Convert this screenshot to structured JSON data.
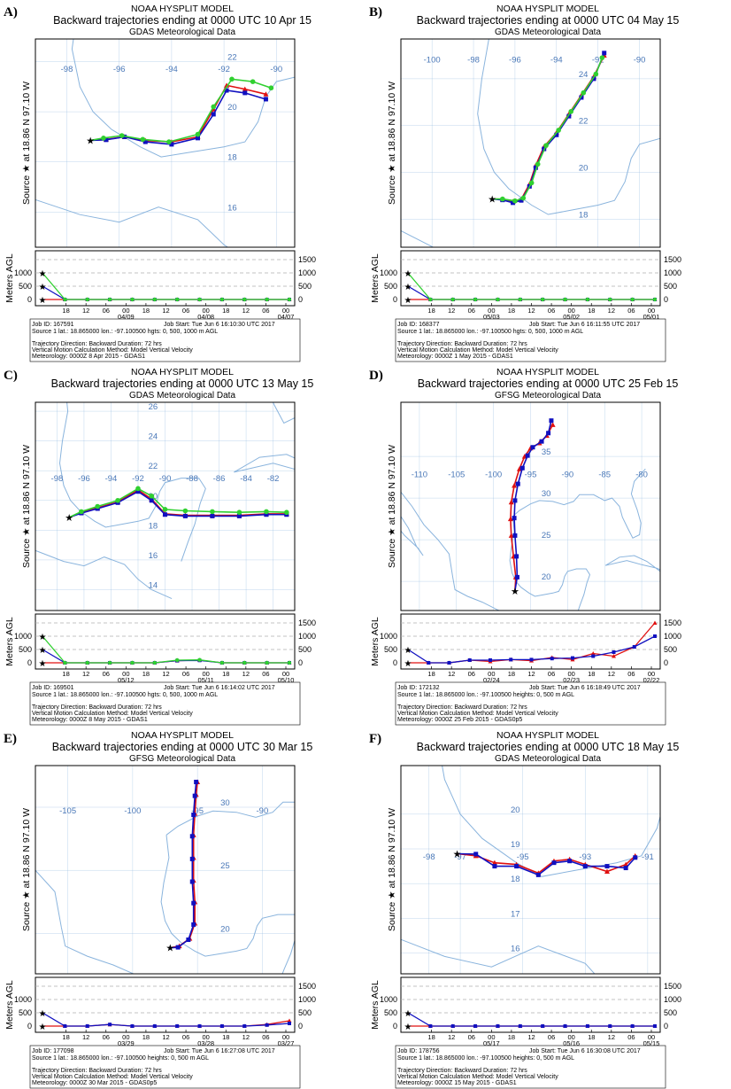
{
  "colors": {
    "coast": "#8ab4dd",
    "grid": "#8ab4dd",
    "red": "#e01010",
    "blue": "#1010c0",
    "green": "#30d030",
    "box": "#000000",
    "dash": "#b0b0b0"
  },
  "common": {
    "model_title": "NOAA HYSPLIT MODEL",
    "source_label": "Source ★ at",
    "lat_label": "18.86 N",
    "lon_label": "97.10 W",
    "vert_label": "Meters AGL",
    "source_line_3": "Source 1 lat.: 18.865000  lon.: -97.100500  hgts: 0, 500, 1000 m AGL",
    "source_line_2": "Source 1 lat.: 18.865000  lon.: -97.100500  heights: 0, 500 m AGL",
    "traj_line": "Trajectory Direction: Backward      Duration: 72 hrs",
    "vmotion_line": "Vertical Motion Calculation Method:      Model Vertical Velocity",
    "vert_ticks": [
      "1500",
      "1000",
      "500",
      "0"
    ]
  },
  "chart_data": [
    {
      "panel_label": "A)",
      "type": "line",
      "title": "Backward trajectories ending at 0000 UTC 10 Apr 15",
      "subtitle": "GDAS Meteorological Data",
      "lon_ticks": [
        "-98",
        "-96",
        "-94",
        "-92",
        "-90"
      ],
      "lat_ticks": [
        "22",
        "20",
        "18",
        "16"
      ],
      "series": [
        {
          "color": "red",
          "height_m": 0,
          "lon": [
            -97.1,
            -96.5,
            -95.8,
            -95.0,
            -94.0,
            -93.0,
            -92.4,
            -91.9,
            -91.2,
            -90.4
          ],
          "lat": [
            18.86,
            18.9,
            19.0,
            18.85,
            18.8,
            19.0,
            20.1,
            21.05,
            20.9,
            20.7
          ]
        },
        {
          "color": "blue",
          "height_m": 500,
          "lon": [
            -97.1,
            -96.5,
            -95.8,
            -95.0,
            -94.0,
            -93.0,
            -92.4,
            -91.9,
            -91.2,
            -90.4
          ],
          "lat": [
            18.86,
            18.88,
            19.0,
            18.8,
            18.7,
            18.95,
            19.9,
            20.85,
            20.75,
            20.5
          ]
        },
        {
          "color": "green",
          "height_m": 1000,
          "lon": [
            -97.1,
            -96.6,
            -95.9,
            -95.1,
            -94.1,
            -93.0,
            -92.4,
            -91.7,
            -90.9,
            -90.2
          ],
          "lat": [
            18.86,
            18.95,
            19.05,
            18.9,
            18.8,
            19.1,
            20.2,
            21.3,
            21.2,
            20.95
          ]
        }
      ],
      "time_ticks": [
        "18",
        "12",
        "06",
        "00",
        "18",
        "12",
        "06",
        "00",
        "18",
        "12",
        "06",
        "00"
      ],
      "date_ticks": [
        "04/09",
        "04/08",
        "04/07"
      ],
      "vertical": [
        {
          "color": "red",
          "h": [
            0,
            0,
            0,
            0,
            0,
            0,
            0,
            0,
            0,
            0,
            0,
            0
          ]
        },
        {
          "color": "blue",
          "h": [
            500,
            0,
            0,
            0,
            0,
            0,
            0,
            0,
            0,
            0,
            0,
            0
          ]
        },
        {
          "color": "green",
          "h": [
            1000,
            0,
            0,
            0,
            0,
            0,
            0,
            0,
            0,
            0,
            0,
            0
          ]
        }
      ],
      "vert_max": 1500,
      "job_id": "Job ID: 167591",
      "job_start": "Job Start: Tue Jun  6 16:10:30 UTC 2017",
      "source_key": "source_line_3",
      "met_line": "Meteorology: 0000Z  8 Apr 2015 - GDAS1"
    },
    {
      "panel_label": "B)",
      "type": "line",
      "title": "Backward trajectories ending at 0000 UTC 04 May 15",
      "subtitle": "GDAS Meteorological Data",
      "lon_ticks": [
        "-100",
        "-98",
        "-96",
        "-94",
        "-92",
        "-90"
      ],
      "lat_ticks": [
        "24",
        "22",
        "20",
        "18"
      ],
      "series": [
        {
          "color": "red",
          "height_m": 0,
          "lon": [
            -97.1,
            -96.6,
            -96.1,
            -95.7,
            -95.3,
            -95.0,
            -94.6,
            -94.0,
            -93.4,
            -92.8,
            -92.2,
            -91.7
          ],
          "lat": [
            18.86,
            18.85,
            18.75,
            18.85,
            19.5,
            20.3,
            21.1,
            21.7,
            22.5,
            23.3,
            24.1,
            25.0
          ]
        },
        {
          "color": "blue",
          "height_m": 500,
          "lon": [
            -97.1,
            -96.6,
            -96.1,
            -95.7,
            -95.3,
            -95.0,
            -94.6,
            -94.0,
            -93.4,
            -92.8,
            -92.2,
            -91.7
          ],
          "lat": [
            18.86,
            18.82,
            18.7,
            18.8,
            19.4,
            20.2,
            21.0,
            21.6,
            22.4,
            23.2,
            24.0,
            25.1
          ]
        },
        {
          "color": "green",
          "height_m": 1000,
          "lon": [
            -97.1,
            -96.6,
            -96.0,
            -95.6,
            -95.2,
            -94.9,
            -94.5,
            -93.9,
            -93.3,
            -92.7,
            -92.1,
            -91.8
          ],
          "lat": [
            18.86,
            18.86,
            18.78,
            18.9,
            19.55,
            20.35,
            21.15,
            21.8,
            22.6,
            23.4,
            24.2,
            24.9
          ]
        }
      ],
      "time_ticks": [
        "18",
        "12",
        "06",
        "00",
        "18",
        "12",
        "06",
        "00",
        "18",
        "12",
        "06",
        "00"
      ],
      "date_ticks": [
        "05/03",
        "05/02",
        "05/01"
      ],
      "vertical": [
        {
          "color": "red",
          "h": [
            0,
            0,
            0,
            0,
            0,
            0,
            0,
            0,
            0,
            0,
            0,
            0
          ]
        },
        {
          "color": "blue",
          "h": [
            500,
            0,
            0,
            0,
            0,
            0,
            0,
            0,
            0,
            0,
            0,
            0
          ]
        },
        {
          "color": "green",
          "h": [
            1000,
            0,
            0,
            0,
            0,
            0,
            0,
            0,
            0,
            0,
            0,
            0
          ]
        }
      ],
      "vert_max": 1500,
      "job_id": "Job ID: 168377",
      "job_start": "Job Start: Tue Jun  6 16:11:55 UTC 2017",
      "source_key": "source_line_3",
      "met_line": "Meteorology: 0000Z  1 May 2015 - GDAS1"
    },
    {
      "panel_label": "C)",
      "type": "line",
      "title": "Backward trajectories ending at 0000 UTC 13 May 15",
      "subtitle": "GDAS Meteorological Data",
      "lon_ticks": [
        "-98",
        "-96",
        "-94",
        "-92",
        "-90",
        "-88",
        "-86",
        "-84",
        "-82"
      ],
      "lat_ticks": [
        "26",
        "24",
        "22",
        "20",
        "18",
        "16",
        "14"
      ],
      "series": [
        {
          "color": "red",
          "height_m": 0,
          "lon": [
            -97.1,
            -96.2,
            -95.0,
            -93.5,
            -92.0,
            -91.0,
            -90.0,
            -88.5,
            -86.5,
            -84.5,
            -82.5,
            -81.0
          ],
          "lat": [
            18.86,
            19.2,
            19.5,
            19.9,
            20.7,
            20.1,
            19.1,
            19.0,
            19.0,
            19.0,
            19.1,
            19.1
          ]
        },
        {
          "color": "blue",
          "height_m": 500,
          "lon": [
            -97.1,
            -96.2,
            -95.0,
            -93.5,
            -92.0,
            -91.0,
            -90.0,
            -88.5,
            -86.5,
            -84.5,
            -82.5,
            -81.0
          ],
          "lat": [
            18.86,
            19.15,
            19.45,
            19.85,
            20.6,
            20.0,
            19.05,
            18.95,
            18.95,
            18.95,
            19.05,
            19.05
          ]
        },
        {
          "color": "green",
          "height_m": 1000,
          "lon": [
            -97.1,
            -96.2,
            -95.0,
            -93.5,
            -92.0,
            -91.0,
            -90.0,
            -88.5,
            -86.5,
            -84.5,
            -82.5,
            -81.0
          ],
          "lat": [
            18.86,
            19.25,
            19.6,
            20.0,
            20.8,
            20.3,
            19.4,
            19.3,
            19.25,
            19.2,
            19.25,
            19.2
          ]
        }
      ],
      "time_ticks": [
        "18",
        "12",
        "06",
        "00",
        "18",
        "12",
        "06",
        "00",
        "18",
        "12",
        "06",
        "00"
      ],
      "date_ticks": [
        "05/12",
        "05/11",
        "05/10"
      ],
      "vertical": [
        {
          "color": "red",
          "h": [
            0,
            0,
            0,
            0,
            0,
            0,
            80,
            100,
            0,
            0,
            0,
            0
          ]
        },
        {
          "color": "blue",
          "h": [
            500,
            0,
            0,
            0,
            0,
            0,
            80,
            90,
            0,
            0,
            0,
            0
          ]
        },
        {
          "color": "green",
          "h": [
            1000,
            0,
            0,
            0,
            0,
            0,
            100,
            110,
            0,
            0,
            0,
            0
          ]
        }
      ],
      "vert_max": 1500,
      "job_id": "Job ID: 169501",
      "job_start": "Job Start: Tue Jun  6 16:14:02 UTC 2017",
      "source_key": "source_line_3",
      "met_line": "Meteorology: 0000Z  8 May 2015 - GDAS1"
    },
    {
      "panel_label": "D)",
      "type": "line",
      "title": "Backward trajectories ending at 0000 UTC 25 Feb 15",
      "subtitle": "GFSG Meteorological Data",
      "lon_ticks": [
        "-110",
        "-105",
        "-100",
        "-95",
        "-90",
        "-85",
        "-80"
      ],
      "lat_ticks": [
        "35",
        "30",
        "25",
        "20"
      ],
      "series": [
        {
          "color": "red",
          "height_m": 0,
          "lon": [
            -97.1,
            -97.0,
            -97.3,
            -97.6,
            -97.7,
            -97.6,
            -97.2,
            -96.5,
            -95.8,
            -95.0,
            -93.8,
            -92.8,
            -92.0
          ],
          "lat": [
            18.86,
            20.5,
            23.0,
            25.5,
            27.5,
            29.5,
            31.5,
            33.5,
            35.0,
            36.0,
            36.6,
            37.5,
            38.8
          ]
        },
        {
          "color": "blue",
          "height_m": 500,
          "lon": [
            -97.1,
            -96.8,
            -96.9,
            -97.1,
            -97.2,
            -97.1,
            -96.7,
            -96.1,
            -95.4,
            -94.7,
            -93.5,
            -92.6,
            -92.2
          ],
          "lat": [
            18.86,
            20.5,
            23.0,
            25.5,
            27.6,
            29.7,
            31.7,
            33.6,
            35.1,
            36.1,
            36.8,
            37.8,
            39.3
          ]
        }
      ],
      "time_ticks": [
        "18",
        "12",
        "06",
        "00",
        "18",
        "12",
        "06",
        "00",
        "18",
        "12",
        "06",
        "00"
      ],
      "date_ticks": [
        "02/24",
        "02/23",
        "02/22"
      ],
      "vertical": [
        {
          "color": "red",
          "h": [
            0,
            0,
            0,
            100,
            50,
            120,
            80,
            200,
            120,
            350,
            250,
            600,
            1500
          ]
        },
        {
          "color": "blue",
          "h": [
            500,
            0,
            0,
            100,
            100,
            120,
            120,
            160,
            180,
            250,
            400,
            600,
            1000
          ]
        }
      ],
      "vert_max": 1500,
      "job_id": "Job ID: 172132",
      "job_start": "Job Start: Tue Jun  6 16:18:49 UTC 2017",
      "source_key": "source_line_2",
      "met_line": "Meteorology: 0000Z 25 Feb 2015 - GDAS0p5"
    },
    {
      "panel_label": "E)",
      "type": "line",
      "title": "Backward trajectories ending at 0000 UTC 30 Mar 15",
      "subtitle": "GFSG Meteorological Data",
      "lon_ticks": [
        "-105",
        "-100",
        "-95",
        "-90"
      ],
      "lat_ticks": [
        "30",
        "25",
        "20"
      ],
      "series": [
        {
          "color": "red",
          "height_m": 0,
          "lon": [
            -97.1,
            -96.4,
            -95.6,
            -95.2,
            -95.2,
            -95.3,
            -95.3,
            -95.3,
            -95.2,
            -95.1,
            -95.0
          ],
          "lat": [
            18.86,
            19.0,
            19.6,
            20.8,
            22.5,
            24.2,
            26.0,
            27.8,
            29.5,
            31.0,
            32.0
          ]
        },
        {
          "color": "blue",
          "height_m": 500,
          "lon": [
            -97.1,
            -96.5,
            -95.7,
            -95.3,
            -95.3,
            -95.4,
            -95.4,
            -95.4,
            -95.3,
            -95.2,
            -95.1
          ],
          "lat": [
            18.86,
            18.9,
            19.5,
            20.7,
            22.4,
            24.1,
            25.9,
            27.7,
            29.4,
            30.9,
            32.0
          ]
        }
      ],
      "time_ticks": [
        "18",
        "12",
        "06",
        "00",
        "18",
        "12",
        "06",
        "00",
        "18",
        "12",
        "06",
        "00"
      ],
      "date_ticks": [
        "03/29",
        "03/28",
        "03/27"
      ],
      "vertical": [
        {
          "color": "red",
          "h": [
            0,
            0,
            0,
            60,
            0,
            0,
            0,
            0,
            0,
            0,
            60,
            200
          ]
        },
        {
          "color": "blue",
          "h": [
            500,
            0,
            0,
            60,
            0,
            0,
            0,
            0,
            0,
            0,
            40,
            100
          ]
        }
      ],
      "vert_max": 1500,
      "job_id": "Job ID: 177098",
      "job_start": "Job Start: Tue Jun  6 16:27:08 UTC 2017",
      "source_key": "source_line_2",
      "met_line": "Meteorology: 0000Z 30 Mar 2015 - GDAS0p5"
    },
    {
      "panel_label": "F)",
      "type": "line",
      "title": "Backward trajectories ending at 0000 UTC 18 May 15",
      "subtitle": "GDAS Meteorological Data",
      "lon_ticks": [
        "-98",
        "-97",
        "-95",
        "-93",
        "-91"
      ],
      "lat_ticks": [
        "20",
        "19",
        "18",
        "17",
        "16"
      ],
      "series": [
        {
          "color": "red",
          "height_m": 0,
          "lon": [
            -97.1,
            -96.5,
            -95.9,
            -95.2,
            -94.5,
            -94.0,
            -93.5,
            -93.0,
            -92.3,
            -91.7,
            -91.4
          ],
          "lat": [
            18.86,
            18.8,
            18.6,
            18.55,
            18.3,
            18.65,
            18.7,
            18.55,
            18.35,
            18.55,
            18.8
          ]
        },
        {
          "color": "blue",
          "height_m": 500,
          "lon": [
            -97.1,
            -96.5,
            -95.9,
            -95.2,
            -94.5,
            -94.0,
            -93.5,
            -93.0,
            -92.3,
            -91.7,
            -91.4
          ],
          "lat": [
            18.86,
            18.85,
            18.5,
            18.5,
            18.25,
            18.6,
            18.65,
            18.5,
            18.5,
            18.45,
            18.75
          ]
        }
      ],
      "time_ticks": [
        "18",
        "12",
        "06",
        "00",
        "18",
        "12",
        "06",
        "00",
        "18",
        "12",
        "06",
        "00"
      ],
      "date_ticks": [
        "05/17",
        "05/16",
        "05/15"
      ],
      "vertical": [
        {
          "color": "red",
          "h": [
            0,
            0,
            0,
            0,
            0,
            0,
            0,
            0,
            0,
            0,
            0,
            0
          ]
        },
        {
          "color": "blue",
          "h": [
            500,
            0,
            0,
            0,
            0,
            0,
            0,
            0,
            0,
            0,
            0,
            0
          ]
        }
      ],
      "vert_max": 1500,
      "job_id": "Job ID: 178756",
      "job_start": "Job Start: Tue Jun  6 16:30:08 UTC 2017",
      "source_key": "source_line_2",
      "met_line": "Meteorology: 0000Z 15 May 2015 - GDAS1"
    }
  ]
}
